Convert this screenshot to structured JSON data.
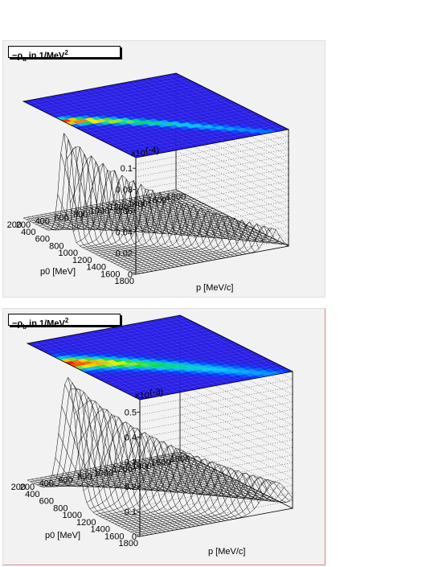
{
  "panels": [
    {
      "title_prefix": "−ρ",
      "title_sub": "a",
      "title_rest": " in 1/MeV",
      "title_sup": "2",
      "exponent_label": "x10",
      "exponent_value": "(-4)",
      "z_ticks": [
        "0",
        "0.02",
        "0.04",
        "0.06",
        "0.08",
        "0.1"
      ],
      "p0_ticks": [
        "1800",
        "1600",
        "1400",
        "1200",
        "1000",
        "800",
        "600",
        "400",
        "200"
      ],
      "p_ticks": [
        "200",
        "400",
        "600",
        "800",
        "1000",
        "1200",
        "1400",
        "1600",
        "1800"
      ],
      "xlabel": "p [MeV/c]",
      "ylabel": "p0 [MeV]"
    },
    {
      "title_prefix": "−ρ",
      "title_sub": "b",
      "title_rest": " in 1/MeV",
      "title_sup": "2",
      "exponent_label": "x10",
      "exponent_value": "(-3)",
      "z_ticks": [
        "0",
        "0.1",
        "0.2",
        "0.3",
        "0.4",
        "0.5"
      ],
      "p0_ticks": [
        "1800",
        "1600",
        "1400",
        "1200",
        "1000",
        "800",
        "600",
        "400",
        "200"
      ],
      "p_ticks": [
        "200",
        "400",
        "600",
        "800",
        "1000",
        "1200",
        "1400",
        "1600",
        "1800"
      ],
      "xlabel": "p [MeV/c]",
      "ylabel": "p0 [MeV]"
    }
  ],
  "chart_data": [
    {
      "type": "surface",
      "title": "−ρa in 1/MeV^2",
      "xlabel": "p [MeV/c]",
      "ylabel": "p0 [MeV]",
      "zlabel": "x10^(-4)",
      "xlim": [
        200,
        1800
      ],
      "ylim": [
        200,
        1800
      ],
      "zlim": [
        0,
        0.11
      ],
      "peak_value": 0.1,
      "ridge": "peak along p0 ≈ sqrt(p^2 + m^2), narrow, near threshold",
      "colormap": "rainbow contour on top plane"
    },
    {
      "type": "surface",
      "title": "−ρb in 1/MeV^2",
      "xlabel": "p [MeV/c]",
      "ylabel": "p0 [MeV]",
      "zlabel": "x10^(-3)",
      "xlim": [
        200,
        1800
      ],
      "ylim": [
        200,
        1800
      ],
      "zlim": [
        0,
        0.55
      ],
      "peak_value": 0.5,
      "ridge": "broader peak along p0 ≈ sqrt(p^2 + m^2)",
      "colormap": "rainbow contour on top plane"
    }
  ]
}
